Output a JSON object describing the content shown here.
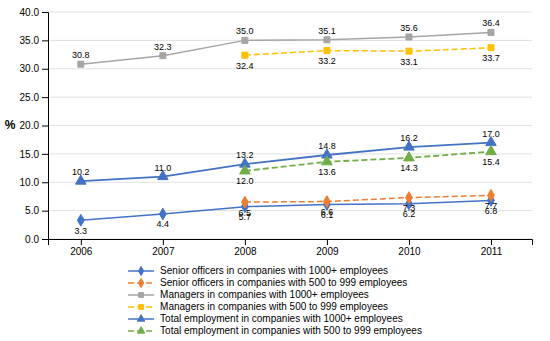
{
  "chart_data": {
    "type": "line",
    "y_label": "%",
    "x": [
      2006,
      2007,
      2008,
      2009,
      2010,
      2011
    ],
    "xlim": [
      2005.6,
      2011.5
    ],
    "xticks": [
      2006,
      2007,
      2008,
      2009,
      2010,
      2011
    ],
    "ylim": [
      0,
      40
    ],
    "yticks": [
      {
        "value": 0,
        "label": "0.0"
      },
      {
        "value": 5,
        "label": "5.0"
      },
      {
        "value": 10,
        "label": "10.0"
      },
      {
        "value": 15,
        "label": "15.0"
      },
      {
        "value": 20,
        "label": "20.0"
      },
      {
        "value": 25,
        "label": "25.0"
      },
      {
        "value": 30,
        "label": "30.0"
      },
      {
        "value": 35,
        "label": "35.0"
      },
      {
        "value": 40,
        "label": "40.0"
      }
    ],
    "grid": true,
    "legend": "bottom",
    "data_labels": true,
    "series": [
      {
        "name": "Senior officers in companies with 1000+ employees",
        "color": "#4472C4",
        "marker": "diamond",
        "line_style": "solid",
        "values": [
          3.3,
          4.4,
          5.7,
          6.1,
          6.2,
          6.8
        ],
        "value_labels": [
          "3.3",
          "4.4",
          "5.7",
          "6.1",
          "6.2",
          "6.8"
        ]
      },
      {
        "name": "Senior officers in companies with 500 to 999 employees",
        "color": "#ED7D31",
        "marker": "diamond",
        "line_style": "dashed",
        "values": [
          null,
          null,
          6.5,
          6.6,
          7.3,
          7.7
        ],
        "value_labels": [
          null,
          null,
          "6.5",
          "6.6",
          "7.3",
          "7.7"
        ]
      },
      {
        "name": "Managers in companies with 1000+ employees",
        "color": "#A5A5A5",
        "marker": "square",
        "line_style": "solid",
        "values": [
          30.8,
          32.3,
          35.0,
          35.1,
          35.6,
          36.4
        ],
        "value_labels": [
          "30.8",
          "32.3",
          "35.0",
          "35.1",
          "35.6",
          "36.4"
        ]
      },
      {
        "name": "Managers in companies with 500 to 999 employees",
        "color": "#FFC000",
        "marker": "square",
        "line_style": "dashed",
        "values": [
          null,
          null,
          32.4,
          33.2,
          33.1,
          33.7
        ],
        "value_labels": [
          null,
          null,
          "32.4",
          "33.2",
          "33.1",
          "33.7"
        ]
      },
      {
        "name": "Total employment in companies with 1000+ employees",
        "color": "#4472C4",
        "marker": "triangle",
        "line_style": "solid",
        "values": [
          10.2,
          11.0,
          13.2,
          14.8,
          16.2,
          17.0
        ],
        "value_labels": [
          "10.2",
          "11.0",
          "13.2",
          "14.8",
          "16.2",
          "17.0"
        ]
      },
      {
        "name": "Total employment in companies with 500 to 999 employees",
        "color": "#70AD47",
        "marker": "triangle",
        "line_style": "dashed",
        "values": [
          null,
          null,
          12.0,
          13.6,
          14.3,
          15.4
        ],
        "value_labels": [
          null,
          null,
          "12.0",
          "13.6",
          "14.3",
          "15.4"
        ]
      }
    ]
  }
}
